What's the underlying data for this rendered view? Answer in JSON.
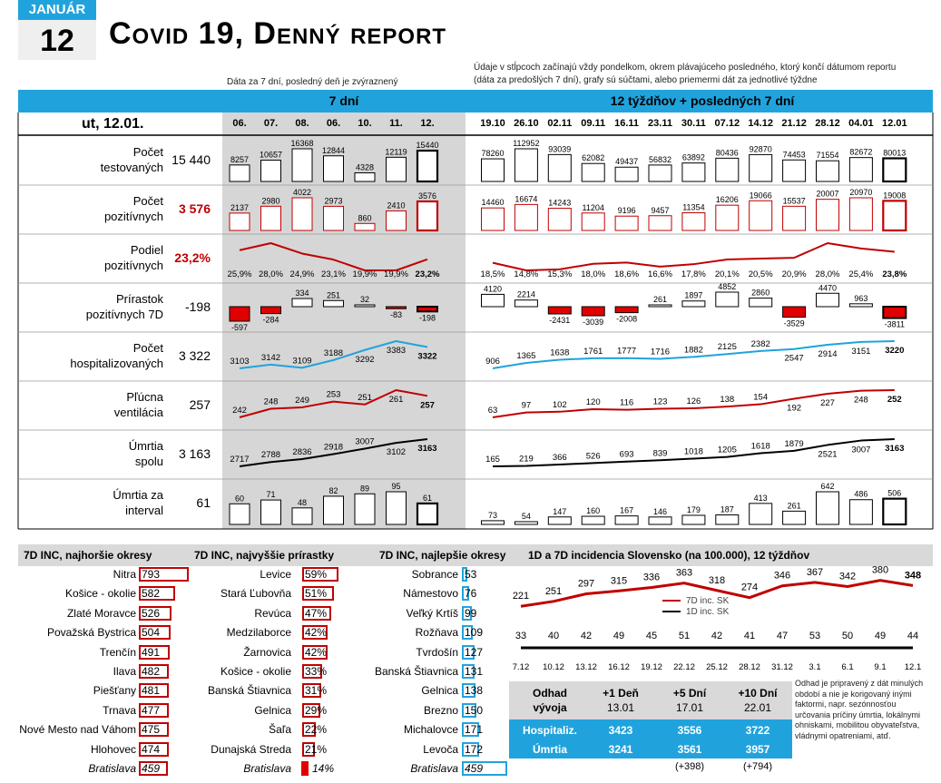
{
  "date_box": {
    "month": "JANUÁR",
    "day": "12"
  },
  "title": "Covid 19, Denný report",
  "notes": {
    "left": "Dáta za 7 dní, posledný deň je zvýraznený",
    "right": "Údaje v stĺpcoch začínajú vždy pondelkom, okrem plávajúceho posledného, ktorý končí dátumom reportu (dáta za predošlých 7 dní), grafy sú súčtami, alebo priemermi dát za jednotlivé týždne"
  },
  "section_headers": {
    "days": "7 dní",
    "weeks": "12 týždňov + posledných 7 dní"
  },
  "report_date": "ut, 12.01.",
  "day_labels": [
    "06.",
    "07.",
    "08.",
    "06.",
    "10.",
    "11.",
    "12."
  ],
  "week_labels": [
    "19.10",
    "26.10",
    "02.11",
    "09.11",
    "16.11",
    "23.11",
    "30.11",
    "07.12",
    "14.12",
    "21.12",
    "28.12",
    "04.01",
    "12.01"
  ],
  "rows": [
    {
      "label1": "Počet",
      "label2": "testovaných",
      "value": "15 440",
      "value_color": "#000000",
      "type": "bar",
      "color": "#000000",
      "days": [
        8257,
        10657,
        16368,
        12844,
        4328,
        12119,
        15440
      ],
      "weeks": [
        78260,
        112952,
        93039,
        62082,
        49437,
        56832,
        63892,
        80436,
        92870,
        74453,
        71554,
        82672,
        80013
      ],
      "day_labels": [
        "8257",
        "10657",
        "16368",
        "12844",
        "4328",
        "12119",
        "15440"
      ],
      "week_labels": [
        "78260",
        "112952",
        "93039",
        "62082",
        "49437",
        "56832",
        "63892",
        "80436",
        "92870",
        "74453",
        "71554",
        "82672",
        "80013"
      ]
    },
    {
      "label1": "Počet",
      "label2": "pozitívnych",
      "value": "3 576",
      "value_color": "#c00000",
      "type": "bar",
      "color": "#c00000",
      "days": [
        2137,
        2980,
        4022,
        2973,
        860,
        2410,
        3576
      ],
      "weeks": [
        14460,
        16674,
        14243,
        11204,
        9196,
        9457,
        11354,
        16206,
        19066,
        15537,
        20007,
        20970,
        19008
      ],
      "day_labels": [
        "2137",
        "2980",
        "4022",
        "2973",
        "860",
        "2410",
        "3576"
      ],
      "week_labels": [
        "14460",
        "16674",
        "14243",
        "11204",
        "9196",
        "9457",
        "11354",
        "16206",
        "19066",
        "15537",
        "20007",
        "20970",
        "19008"
      ]
    },
    {
      "label1": "Podiel",
      "label2": "pozitívnych",
      "value": "23,2%",
      "value_color": "#c00000",
      "type": "line",
      "color": "#c00000",
      "days": [
        25.9,
        28.0,
        24.9,
        23.1,
        19.9,
        19.9,
        23.2
      ],
      "weeks": [
        18.5,
        14.8,
        15.3,
        18.0,
        18.6,
        16.6,
        17.8,
        20.1,
        20.5,
        20.9,
        28.0,
        25.4,
        23.8
      ],
      "day_labels": [
        "25,9%",
        "28,0%",
        "24,9%",
        "23,1%",
        "19,9%",
        "19,9%",
        "23,2%"
      ],
      "week_labels": [
        "18,5%",
        "14,8%",
        "15,3%",
        "18,0%",
        "18,6%",
        "16,6%",
        "17,8%",
        "20,1%",
        "20,5%",
        "20,9%",
        "28,0%",
        "25,4%",
        "23,8%"
      ]
    },
    {
      "label1": "Prírastok",
      "label2": "pozitívnych 7D",
      "value": "-198",
      "value_color": "#000000",
      "type": "delta",
      "color": "#000000",
      "days": [
        -597,
        -284,
        334,
        251,
        32,
        -83,
        -198
      ],
      "weeks": [
        4120,
        2214,
        -2431,
        -3039,
        -2008,
        261,
        1897,
        4852,
        2860,
        -3529,
        4470,
        963,
        -3811
      ],
      "day_labels": [
        "-597",
        "-284",
        "334",
        "251",
        "32",
        "-83",
        "-198"
      ],
      "week_labels": [
        "4120",
        "2214",
        "-2431",
        "-3039",
        "-2008",
        "261",
        "1897",
        "4852",
        "2860",
        "-3529",
        "4470",
        "963",
        "-3811"
      ]
    },
    {
      "label1": "Počet",
      "label2": "hospitalizovaných",
      "value": "3 322",
      "value_color": "#000000",
      "type": "line",
      "color": "#20a3dd",
      "days": [
        3103,
        3142,
        3109,
        3188,
        3292,
        3383,
        3322
      ],
      "weeks": [
        906,
        1365,
        1638,
        1761,
        1777,
        1716,
        1882,
        2125,
        2382,
        2547,
        2914,
        3151,
        3220
      ],
      "day_labels": [
        "3103",
        "3142",
        "3109",
        "3188",
        "3292",
        "3383",
        "3322"
      ],
      "week_labels": [
        "906",
        "1365",
        "1638",
        "1761",
        "1777",
        "1716",
        "1882",
        "2125",
        "2382",
        "2547",
        "2914",
        "3151",
        "3220"
      ]
    },
    {
      "label1": "Pľúcna",
      "label2": "ventilácia",
      "value": "257",
      "value_color": "#000000",
      "type": "line",
      "color": "#c00000",
      "days": [
        242,
        248,
        249,
        253,
        251,
        261,
        257
      ],
      "weeks": [
        63,
        97,
        102,
        120,
        116,
        123,
        126,
        138,
        154,
        192,
        227,
        248,
        252
      ],
      "day_labels": [
        "242",
        "248",
        "249",
        "253",
        "251",
        "261",
        "257"
      ],
      "week_labels": [
        "63",
        "97",
        "102",
        "120",
        "116",
        "123",
        "126",
        "138",
        "154",
        "192",
        "227",
        "248",
        "252"
      ]
    },
    {
      "label1": "Úmrtia",
      "label2": "spolu",
      "value": "3 163",
      "value_color": "#000000",
      "type": "line",
      "color": "#000000",
      "days": [
        2717,
        2788,
        2836,
        2918,
        3007,
        3102,
        3163
      ],
      "weeks": [
        165,
        219,
        366,
        526,
        693,
        839,
        1018,
        1205,
        1618,
        1879,
        2521,
        3007,
        3163
      ],
      "day_labels": [
        "2717",
        "2788",
        "2836",
        "2918",
        "3007",
        "3102",
        "3163"
      ],
      "week_labels": [
        "165",
        "219",
        "366",
        "526",
        "693",
        "839",
        "1018",
        "1205",
        "1618",
        "1879",
        "2521",
        "3007",
        "3163"
      ]
    },
    {
      "label1": "Úmrtia za",
      "label2": "interval",
      "value": "61",
      "value_color": "#000000",
      "type": "bar",
      "color": "#000000",
      "days": [
        60,
        71,
        48,
        82,
        89,
        95,
        61
      ],
      "weeks": [
        73,
        54,
        147,
        160,
        167,
        146,
        179,
        187,
        413,
        261,
        642,
        486,
        506
      ],
      "day_labels": [
        "60",
        "71",
        "48",
        "82",
        "89",
        "95",
        "61"
      ],
      "week_labels": [
        "73",
        "54",
        "147",
        "160",
        "167",
        "146",
        "179",
        "187",
        "413",
        "261",
        "642",
        "486",
        "506"
      ]
    }
  ],
  "lower_headers": {
    "worst": "7D INC, najhoršie okresy",
    "growth": "7D INC, najvyššie prírastky",
    "best": "7D INC, najlepšie okresy",
    "incidence": "1D a 7D incidencia Slovensko (na 100.000), 12 týždňov"
  },
  "worst_districts": [
    {
      "name": "Nitra",
      "value": "793",
      "v": 793
    },
    {
      "name": "Košice - okolie",
      "value": "582",
      "v": 582
    },
    {
      "name": "Zlaté Moravce",
      "value": "526",
      "v": 526
    },
    {
      "name": "Považská Bystrica",
      "value": "504",
      "v": 504
    },
    {
      "name": "Trenčín",
      "value": "491",
      "v": 491
    },
    {
      "name": "Ilava",
      "value": "482",
      "v": 482
    },
    {
      "name": "Piešťany",
      "value": "481",
      "v": 481
    },
    {
      "name": "Trnava",
      "value": "477",
      "v": 477
    },
    {
      "name": "Nové Mesto nad Váhom",
      "value": "475",
      "v": 475
    },
    {
      "name": "Hlohovec",
      "value": "474",
      "v": 474
    },
    {
      "name": "Bratislava",
      "value": "459",
      "v": 459,
      "italic": true
    }
  ],
  "growth_districts": [
    {
      "name": "Levice",
      "value": "59%",
      "v": 59
    },
    {
      "name": "Stará Ľubovňa",
      "value": "51%",
      "v": 51
    },
    {
      "name": "Revúca",
      "value": "47%",
      "v": 47
    },
    {
      "name": "Medzilaborce",
      "value": "42%",
      "v": 42
    },
    {
      "name": "Žarnovica",
      "value": "42%",
      "v": 42
    },
    {
      "name": "Košice - okolie",
      "value": "33%",
      "v": 33
    },
    {
      "name": "Banská Štiavnica",
      "value": "31%",
      "v": 31
    },
    {
      "name": "Gelnica",
      "value": "29%",
      "v": 29
    },
    {
      "name": "Šaľa",
      "value": "22%",
      "v": 22
    },
    {
      "name": "Dunajská Streda",
      "value": "21%",
      "v": 21
    },
    {
      "name": "Bratislava",
      "value": "14%",
      "v": 14,
      "italic": true
    }
  ],
  "best_districts": [
    {
      "name": "Sobrance",
      "value": "53",
      "v": 53
    },
    {
      "name": "Námestovo",
      "value": "76",
      "v": 76
    },
    {
      "name": "Veľký Krtíš",
      "value": "99",
      "v": 99
    },
    {
      "name": "Rožňava",
      "value": "109",
      "v": 109
    },
    {
      "name": "Tvrdošín",
      "value": "127",
      "v": 127
    },
    {
      "name": "Banská Štiavnica",
      "value": "131",
      "v": 131
    },
    {
      "name": "Gelnica",
      "value": "138",
      "v": 138
    },
    {
      "name": "Brezno",
      "value": "150",
      "v": 150
    },
    {
      "name": "Michalovce",
      "value": "171",
      "v": 171
    },
    {
      "name": "Levoča",
      "value": "172",
      "v": 172
    },
    {
      "name": "Bratislava",
      "value": "459",
      "v": 459,
      "italic": true
    }
  ],
  "chart_data": {
    "type": "line",
    "categories": [
      "7.12",
      "10.12",
      "13.12",
      "16.12",
      "19.12",
      "22.12",
      "25.12",
      "28.12",
      "31.12",
      "3.1",
      "6.1",
      "9.1",
      "12.1"
    ],
    "series": [
      {
        "name": "7D inc. SK",
        "values": [
          221,
          251,
          297,
          315,
          336,
          363,
          318,
          274,
          346,
          367,
          342,
          380,
          348
        ],
        "color": "#c00000"
      },
      {
        "name": "1D inc. SK",
        "values": [
          33,
          40,
          42,
          49,
          45,
          51,
          42,
          41,
          47,
          53,
          50,
          49,
          44
        ],
        "color": "#000000"
      }
    ]
  },
  "forecast": {
    "header_label1": "Odhad",
    "header_label2": "vývoja",
    "columns": [
      {
        "title": "+1 Deň",
        "date": "13.01"
      },
      {
        "title": "+5 Dní",
        "date": "17.01"
      },
      {
        "title": "+10 Dní",
        "date": "22.01"
      }
    ],
    "rows": [
      {
        "label": "Hospitaliz.",
        "values": [
          "3423",
          "3556",
          "3722"
        ]
      },
      {
        "label": "Úmrtia",
        "values": [
          "3241",
          "3561",
          "3957"
        ]
      }
    ],
    "deltas": [
      "(+398)",
      "(+794)"
    ],
    "note": "Odhad je pripravený z dát minulých období a nie je korigovaný inými faktormi, napr. sezónnosťou určovania príčiny úmrtia, lokálnymi ohniskami, mobilitou obyvateľstva, vládnymi opatreniami, atď."
  }
}
